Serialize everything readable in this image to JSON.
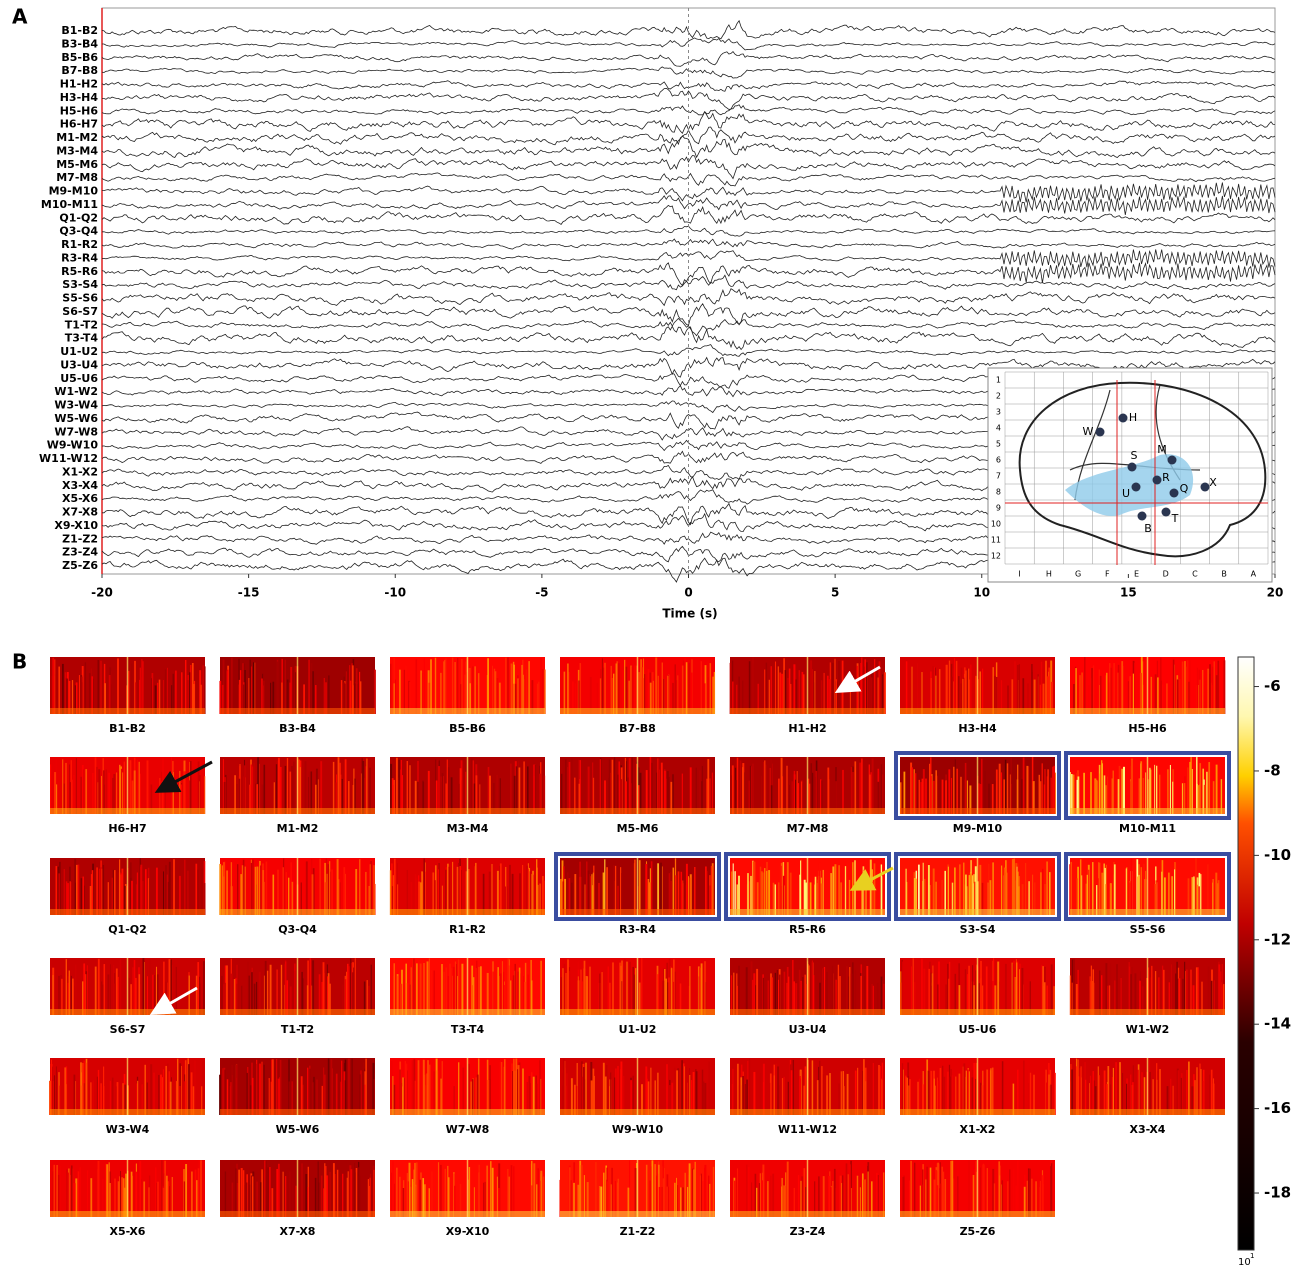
{
  "panel_a": {
    "label": "A",
    "channels": [
      "B1-B2",
      "B3-B4",
      "B5-B6",
      "B7-B8",
      "H1-H2",
      "H3-H4",
      "H5-H6",
      "H6-H7",
      "M1-M2",
      "M3-M4",
      "M5-M6",
      "M7-M8",
      "M9-M10",
      "M10-M11",
      "Q1-Q2",
      "Q3-Q4",
      "R1-R2",
      "R3-R4",
      "R5-R6",
      "S3-S4",
      "S5-S6",
      "S6-S7",
      "T1-T2",
      "T3-T4",
      "U1-U2",
      "U3-U4",
      "U5-U6",
      "W1-W2",
      "W3-W4",
      "W5-W6",
      "W7-W8",
      "W9-W10",
      "W11-W12",
      "X1-X2",
      "X3-X4",
      "X5-X6",
      "X7-X8",
      "X9-X10",
      "Z1-Z2",
      "Z3-Z4",
      "Z5-Z6"
    ],
    "xlabel": "Time (s)",
    "xlim": [
      -20,
      20
    ],
    "xticks": [
      -20,
      -15,
      -10,
      -5,
      0,
      5,
      10,
      15,
      20
    ],
    "inset": {
      "rows": [
        "1",
        "2",
        "3",
        "4",
        "5",
        "6",
        "7",
        "8",
        "9",
        "10",
        "11",
        "12"
      ],
      "cols": [
        "I",
        "H",
        "G",
        "F",
        "E",
        "D",
        "C",
        "B",
        "A"
      ],
      "electrodes": [
        "H",
        "W",
        "S",
        "M",
        "R",
        "Q",
        "X",
        "U",
        "T",
        "B"
      ]
    }
  },
  "panel_b": {
    "label": "B",
    "spectrograms": [
      {
        "label": "B1-B2",
        "highlighted": false
      },
      {
        "label": "B3-B4",
        "highlighted": false
      },
      {
        "label": "B5-B6",
        "highlighted": false
      },
      {
        "label": "B7-B8",
        "highlighted": false
      },
      {
        "label": "H1-H2",
        "highlighted": false
      },
      {
        "label": "H3-H4",
        "highlighted": false
      },
      {
        "label": "H5-H6",
        "highlighted": false
      },
      {
        "label": "H6-H7",
        "highlighted": false
      },
      {
        "label": "M1-M2",
        "highlighted": false
      },
      {
        "label": "M3-M4",
        "highlighted": false
      },
      {
        "label": "M5-M6",
        "highlighted": false
      },
      {
        "label": "M7-M8",
        "highlighted": false
      },
      {
        "label": "M9-M10",
        "highlighted": true
      },
      {
        "label": "M10-M11",
        "highlighted": true
      },
      {
        "label": "Q1-Q2",
        "highlighted": false
      },
      {
        "label": "Q3-Q4",
        "highlighted": false
      },
      {
        "label": "R1-R2",
        "highlighted": false
      },
      {
        "label": "R3-R4",
        "highlighted": true
      },
      {
        "label": "R5-R6",
        "highlighted": true
      },
      {
        "label": "S3-S4",
        "highlighted": true
      },
      {
        "label": "S5-S6",
        "highlighted": true
      },
      {
        "label": "S6-S7",
        "highlighted": false
      },
      {
        "label": "T1-T2",
        "highlighted": false
      },
      {
        "label": "T3-T4",
        "highlighted": false
      },
      {
        "label": "U1-U2",
        "highlighted": false
      },
      {
        "label": "U3-U4",
        "highlighted": false
      },
      {
        "label": "U5-U6",
        "highlighted": false
      },
      {
        "label": "W1-W2",
        "highlighted": false
      },
      {
        "label": "W3-W4",
        "highlighted": false
      },
      {
        "label": "W5-W6",
        "highlighted": false
      },
      {
        "label": "W7-W8",
        "highlighted": false
      },
      {
        "label": "W9-W10",
        "highlighted": false
      },
      {
        "label": "W11-W12",
        "highlighted": false
      },
      {
        "label": "X1-X2",
        "highlighted": false
      },
      {
        "label": "X3-X4",
        "highlighted": false
      },
      {
        "label": "X5-X6",
        "highlighted": false
      },
      {
        "label": "X7-X8",
        "highlighted": false
      },
      {
        "label": "X9-X10",
        "highlighted": false
      },
      {
        "label": "Z1-Z2",
        "highlighted": false
      },
      {
        "label": "Z3-Z4",
        "highlighted": false
      },
      {
        "label": "Z5-Z6",
        "highlighted": false
      }
    ],
    "colorbar": {
      "clim": [
        -19.35,
        -5.3
      ],
      "ticks": [
        -6,
        -8,
        -10,
        -12,
        -14,
        -16,
        -18
      ],
      "base": "10",
      "exponent": "1"
    }
  }
}
